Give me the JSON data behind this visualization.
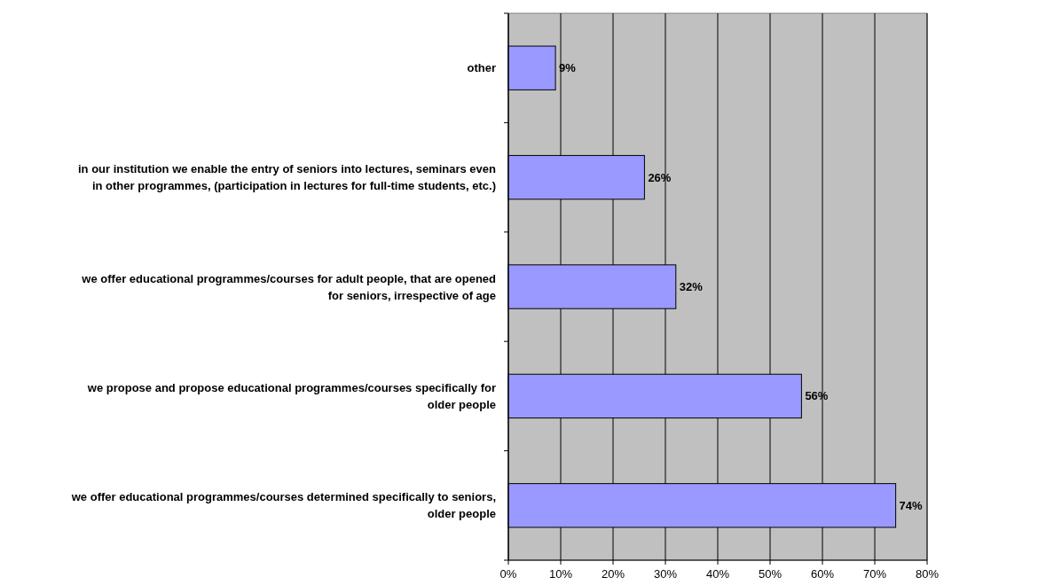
{
  "chart_data": {
    "type": "bar",
    "orientation": "horizontal",
    "categories": [
      "other",
      "in our institution we enable the entry of seniors into lectures, seminars even in other programmes, (participation in lectures for full-time students, etc.)",
      "we offer educational programmes/courses for adult people, that are opened for seniors, irrespective of age",
      "we propose and propose educational programmes/courses specifically for older people",
      "we offer educational programmes/courses determined specifically to seniors, older people"
    ],
    "values": [
      9,
      26,
      32,
      56,
      74
    ],
    "value_labels": [
      "9%",
      "26%",
      "32%",
      "56%",
      "74%"
    ],
    "color": "#9999ff",
    "xlim": [
      0,
      80
    ],
    "xticks": [
      {
        "value": 0,
        "label": "0%"
      },
      {
        "value": 10,
        "label": "10%"
      },
      {
        "value": 20,
        "label": "20%"
      },
      {
        "value": 30,
        "label": "30%"
      },
      {
        "value": 40,
        "label": "40%"
      },
      {
        "value": 50,
        "label": "50%"
      },
      {
        "value": 60,
        "label": "60%"
      },
      {
        "value": 70,
        "label": "70%"
      },
      {
        "value": 80,
        "label": "80%"
      }
    ],
    "grid": "x"
  }
}
